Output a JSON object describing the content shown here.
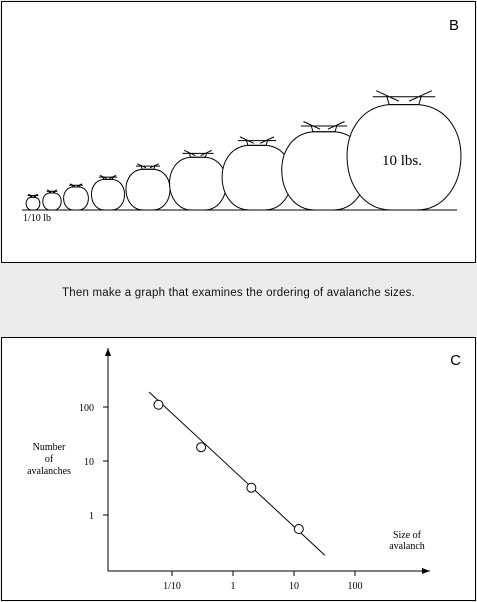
{
  "panel_b": {
    "letter": "B",
    "small_label": "1/10 lb",
    "large_label": "10 lbs.",
    "bag_count": 10
  },
  "caption": "Then make a graph that examines the ordering of avalanche sizes.",
  "panel_c": {
    "letter": "C",
    "ylabel_lines": [
      "Number",
      "of",
      "avalanches"
    ],
    "xlabel_lines": [
      "Size of",
      "avalanch"
    ],
    "y_ticks": [
      "100",
      "10",
      "1"
    ],
    "x_ticks": [
      "1/10",
      "1",
      "10",
      "100"
    ]
  },
  "chart_data": {
    "type": "scatter",
    "x_scale": "log",
    "y_scale": "log",
    "xlabel": "Size of avalanch",
    "ylabel": "Number of avalanches",
    "x_tick_labels": [
      "1/10",
      "1",
      "10",
      "100"
    ],
    "y_tick_labels": [
      "1",
      "10",
      "100"
    ],
    "series": [
      {
        "x": [
          0.06,
          0.3,
          2,
          12
        ],
        "y": [
          110,
          18,
          3.2,
          0.55
        ]
      }
    ],
    "trend_line": {
      "x": [
        0.042,
        32
      ],
      "y": [
        190,
        0.18
      ]
    },
    "grid": false
  }
}
